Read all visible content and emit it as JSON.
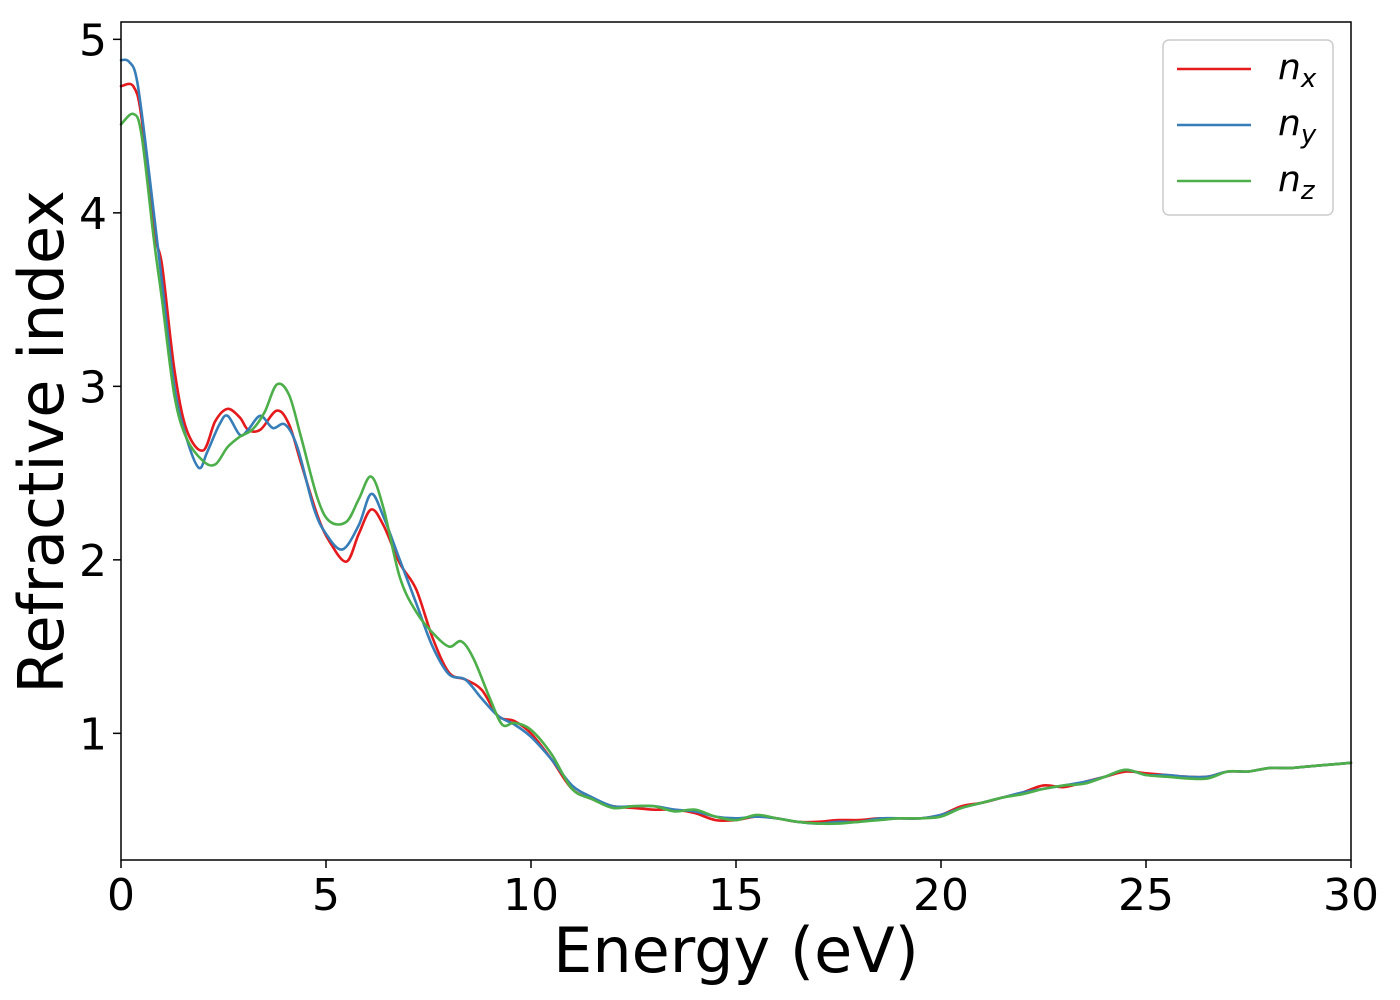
{
  "chart_data": {
    "type": "line",
    "xlabel": "Energy (eV)",
    "ylabel": "Refractive index",
    "xlim": [
      0,
      30
    ],
    "ylim": [
      0.27,
      5.1
    ],
    "xticks": [
      0,
      5,
      10,
      15,
      20,
      25,
      30
    ],
    "yticks": [
      1,
      2,
      3,
      4,
      5
    ],
    "grid": false,
    "legend_position": "top-right",
    "series": [
      {
        "name": "n",
        "subscript": "x",
        "color": "#e41a1c",
        "x": [
          0,
          0.3,
          0.5,
          0.8,
          1.0,
          1.3,
          1.6,
          2.0,
          2.3,
          2.6,
          2.9,
          3.1,
          3.4,
          3.8,
          4.1,
          4.4,
          4.8,
          5.1,
          5.5,
          5.8,
          6.1,
          6.4,
          6.8,
          7.2,
          7.6,
          8.0,
          8.4,
          8.8,
          9.2,
          9.6,
          10.0,
          10.5,
          11.0,
          11.5,
          12.0,
          12.5,
          13.0,
          13.5,
          14.0,
          14.5,
          15.0,
          15.5,
          16.0,
          16.5,
          17.0,
          17.5,
          18.0,
          18.5,
          19.0,
          19.5,
          20.0,
          20.5,
          21.0,
          21.5,
          22.0,
          22.5,
          23.0,
          23.5,
          24.0,
          24.5,
          25.0,
          25.5,
          26.0,
          26.5,
          27.0,
          27.5,
          28.0,
          28.5,
          29.0,
          29.5,
          30.0
        ],
        "values": [
          4.73,
          4.73,
          4.55,
          3.9,
          3.7,
          3.1,
          2.75,
          2.63,
          2.8,
          2.87,
          2.82,
          2.75,
          2.75,
          2.86,
          2.78,
          2.55,
          2.25,
          2.1,
          1.99,
          2.15,
          2.29,
          2.2,
          1.98,
          1.83,
          1.55,
          1.35,
          1.31,
          1.25,
          1.1,
          1.07,
          1.0,
          0.85,
          0.68,
          0.62,
          0.58,
          0.57,
          0.56,
          0.56,
          0.54,
          0.5,
          0.5,
          0.52,
          0.51,
          0.49,
          0.49,
          0.5,
          0.5,
          0.51,
          0.51,
          0.51,
          0.53,
          0.58,
          0.6,
          0.63,
          0.66,
          0.7,
          0.69,
          0.72,
          0.75,
          0.78,
          0.77,
          0.76,
          0.75,
          0.75,
          0.78,
          0.78,
          0.8,
          0.8,
          0.81,
          0.82,
          0.83
        ]
      },
      {
        "name": "n",
        "subscript": "y",
        "color": "#377eb8",
        "x": [
          0,
          0.2,
          0.4,
          0.7,
          1.0,
          1.3,
          1.6,
          1.9,
          2.1,
          2.4,
          2.6,
          2.9,
          3.1,
          3.4,
          3.7,
          4.0,
          4.3,
          4.7,
          5.0,
          5.4,
          5.8,
          6.1,
          6.4,
          6.8,
          7.2,
          7.6,
          8.0,
          8.4,
          8.8,
          9.2,
          9.6,
          10.0,
          10.5,
          11.0,
          11.5,
          12.0,
          12.5,
          13.0,
          13.5,
          14.0,
          14.5,
          15.0,
          15.5,
          16.0,
          16.5,
          17.0,
          17.5,
          18.0,
          18.5,
          19.0,
          19.5,
          20.0,
          20.5,
          21.0,
          21.5,
          22.0,
          22.5,
          23.0,
          23.5,
          24.0,
          24.5,
          25.0,
          25.5,
          26.0,
          26.5,
          27.0,
          27.5,
          28.0,
          28.5,
          29.0,
          29.5,
          30.0
        ],
        "values": [
          4.88,
          4.87,
          4.75,
          4.2,
          3.6,
          3.0,
          2.7,
          2.53,
          2.62,
          2.78,
          2.83,
          2.72,
          2.75,
          2.83,
          2.76,
          2.78,
          2.65,
          2.3,
          2.15,
          2.06,
          2.2,
          2.38,
          2.25,
          2.0,
          1.75,
          1.5,
          1.34,
          1.31,
          1.2,
          1.1,
          1.05,
          0.98,
          0.85,
          0.7,
          0.63,
          0.58,
          0.58,
          0.58,
          0.56,
          0.55,
          0.52,
          0.51,
          0.52,
          0.51,
          0.49,
          0.48,
          0.49,
          0.49,
          0.51,
          0.51,
          0.51,
          0.53,
          0.57,
          0.6,
          0.63,
          0.66,
          0.68,
          0.7,
          0.72,
          0.75,
          0.79,
          0.76,
          0.76,
          0.75,
          0.75,
          0.78,
          0.78,
          0.8,
          0.8,
          0.81,
          0.82,
          0.83
        ]
      },
      {
        "name": "n",
        "subscript": "z",
        "color": "#4daf4a",
        "x": [
          0,
          0.3,
          0.5,
          0.8,
          1.0,
          1.3,
          1.6,
          2.0,
          2.3,
          2.6,
          2.9,
          3.2,
          3.5,
          3.8,
          4.1,
          4.4,
          4.8,
          5.1,
          5.5,
          5.8,
          6.1,
          6.4,
          6.8,
          7.2,
          7.6,
          8.0,
          8.3,
          8.6,
          9.0,
          9.3,
          9.6,
          10.0,
          10.5,
          11.0,
          11.5,
          12.0,
          12.5,
          13.0,
          13.5,
          14.0,
          14.5,
          15.0,
          15.5,
          16.0,
          16.5,
          17.0,
          17.5,
          18.0,
          18.5,
          19.0,
          19.5,
          20.0,
          20.5,
          21.0,
          21.5,
          22.0,
          22.5,
          23.0,
          23.5,
          24.0,
          24.5,
          25.0,
          25.5,
          26.0,
          26.5,
          27.0,
          27.5,
          28.0,
          28.5,
          29.0,
          29.5,
          30.0
        ],
        "values": [
          4.51,
          4.57,
          4.45,
          3.85,
          3.5,
          2.95,
          2.7,
          2.57,
          2.55,
          2.65,
          2.71,
          2.75,
          2.85,
          3.01,
          2.95,
          2.7,
          2.35,
          2.22,
          2.22,
          2.35,
          2.48,
          2.3,
          1.9,
          1.7,
          1.58,
          1.5,
          1.53,
          1.43,
          1.2,
          1.05,
          1.06,
          1.02,
          0.88,
          0.68,
          0.62,
          0.57,
          0.58,
          0.58,
          0.55,
          0.56,
          0.52,
          0.5,
          0.53,
          0.51,
          0.49,
          0.48,
          0.48,
          0.49,
          0.5,
          0.51,
          0.51,
          0.52,
          0.57,
          0.6,
          0.63,
          0.65,
          0.68,
          0.7,
          0.71,
          0.75,
          0.79,
          0.76,
          0.75,
          0.74,
          0.74,
          0.78,
          0.78,
          0.8,
          0.8,
          0.81,
          0.82,
          0.83
        ]
      }
    ]
  }
}
